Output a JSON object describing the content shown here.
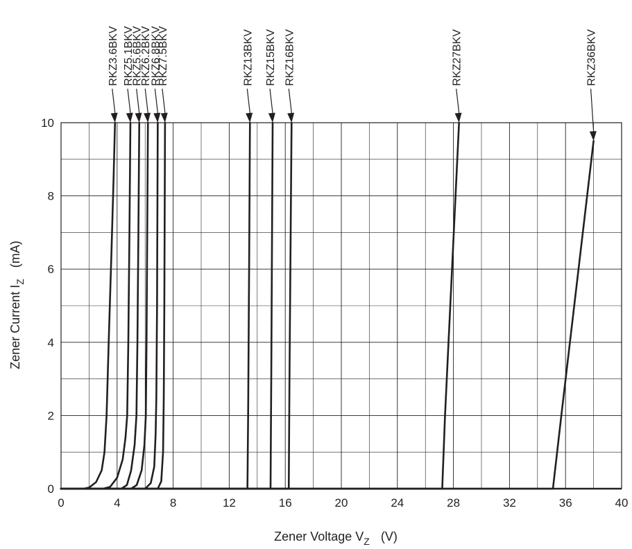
{
  "chart_data": {
    "type": "line",
    "title": "",
    "xlabel": {
      "main": "Zener Voltage  V",
      "sub": "Z",
      "unit": "(V)"
    },
    "ylabel": {
      "main": "Zener Current  I",
      "sub": "Z",
      "unit": "(mA)"
    },
    "xlim": [
      0,
      40
    ],
    "ylim": [
      0,
      10
    ],
    "x_ticks": [
      0,
      4,
      8,
      12,
      16,
      20,
      24,
      28,
      32,
      36,
      40
    ],
    "y_ticks": [
      0,
      2,
      4,
      6,
      8,
      10
    ],
    "grid": true,
    "colors": {
      "axis": "#231f20",
      "grid": "#231f20",
      "line": "#231f20"
    },
    "series": [
      {
        "name": "RKZ3.6BKV",
        "points": [
          [
            0,
            0
          ],
          [
            1.6,
            0
          ],
          [
            2.0,
            0.03
          ],
          [
            2.5,
            0.18
          ],
          [
            2.9,
            0.5
          ],
          [
            3.1,
            1.0
          ],
          [
            3.25,
            2.0
          ],
          [
            3.4,
            4.0
          ],
          [
            3.6,
            6.5
          ],
          [
            3.75,
            8.5
          ],
          [
            3.85,
            10
          ]
        ]
      },
      {
        "name": "RKZ5.1BKV",
        "points": [
          [
            0,
            0
          ],
          [
            3.0,
            0
          ],
          [
            3.5,
            0.05
          ],
          [
            4.0,
            0.3
          ],
          [
            4.4,
            0.8
          ],
          [
            4.6,
            1.4
          ],
          [
            4.72,
            2.0
          ],
          [
            4.8,
            4.0
          ],
          [
            4.88,
            7.0
          ],
          [
            4.95,
            10
          ]
        ]
      },
      {
        "name": "RKZ5.6BKV",
        "points": [
          [
            0,
            0
          ],
          [
            4.3,
            0
          ],
          [
            4.7,
            0.1
          ],
          [
            5.0,
            0.5
          ],
          [
            5.25,
            1.2
          ],
          [
            5.38,
            2.0
          ],
          [
            5.45,
            4.0
          ],
          [
            5.52,
            7.0
          ],
          [
            5.58,
            10
          ]
        ]
      },
      {
        "name": "RKZ6.2BKV",
        "points": [
          [
            0,
            0
          ],
          [
            5.0,
            0
          ],
          [
            5.4,
            0.1
          ],
          [
            5.75,
            0.5
          ],
          [
            5.95,
            1.2
          ],
          [
            6.05,
            2.0
          ],
          [
            6.1,
            4.0
          ],
          [
            6.15,
            7.0
          ],
          [
            6.2,
            10
          ]
        ]
      },
      {
        "name": "RKZ6.8BKV",
        "points": [
          [
            0,
            0
          ],
          [
            6.0,
            0
          ],
          [
            6.4,
            0.15
          ],
          [
            6.65,
            0.6
          ],
          [
            6.75,
            1.5
          ],
          [
            6.8,
            2.5
          ],
          [
            6.85,
            5.0
          ],
          [
            6.9,
            10
          ]
        ]
      },
      {
        "name": "RKZ7.5BKV",
        "points": [
          [
            0,
            0
          ],
          [
            6.9,
            0
          ],
          [
            7.15,
            0.2
          ],
          [
            7.28,
            1.0
          ],
          [
            7.33,
            2.5
          ],
          [
            7.37,
            5.0
          ],
          [
            7.42,
            10
          ]
        ]
      },
      {
        "name": "RKZ13BKV",
        "points": [
          [
            0,
            0
          ],
          [
            13.3,
            0
          ],
          [
            13.35,
            2.0
          ],
          [
            13.42,
            6.0
          ],
          [
            13.48,
            10
          ]
        ]
      },
      {
        "name": "RKZ15BKV",
        "points": [
          [
            0,
            0
          ],
          [
            14.95,
            0
          ],
          [
            15.0,
            3.0
          ],
          [
            15.1,
            10
          ]
        ]
      },
      {
        "name": "RKZ16BKV",
        "points": [
          [
            0,
            0
          ],
          [
            16.25,
            0
          ],
          [
            16.3,
            3.0
          ],
          [
            16.45,
            10
          ]
        ]
      },
      {
        "name": "RKZ27BKV",
        "points": [
          [
            0,
            0
          ],
          [
            27.2,
            0
          ],
          [
            27.4,
            2.0
          ],
          [
            28.4,
            10
          ]
        ]
      },
      {
        "name": "RKZ36BKV",
        "points": [
          [
            0,
            0
          ],
          [
            35.1,
            0
          ],
          [
            35.7,
            2.0
          ],
          [
            38.0,
            9.5
          ]
        ]
      }
    ]
  }
}
